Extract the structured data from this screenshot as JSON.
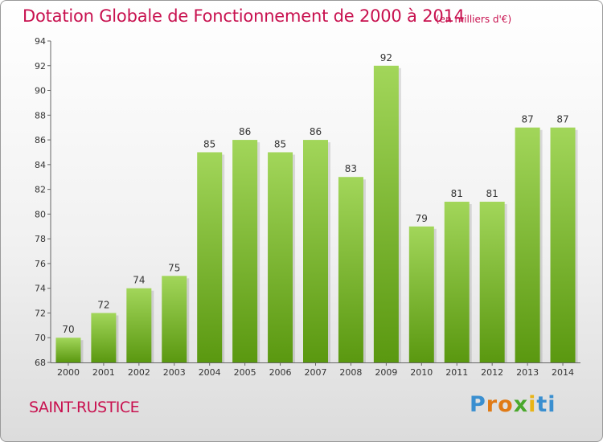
{
  "title": "Dotation Globale de Fonctionnement de 2000 à 2014",
  "unit_note": "(en milliers d'€)",
  "commune": "SAINT-RUSTICE",
  "logo": {
    "letters": [
      "P",
      "r",
      "o",
      "x",
      "i",
      "t",
      "i"
    ]
  },
  "colors": {
    "title": "#c8114f",
    "bar_light": "#9dd353",
    "bar_dark": "#5e9c12"
  },
  "chart_data": {
    "type": "bar",
    "title": "Dotation Globale de Fonctionnement de 2000 à 2014",
    "categories": [
      "2000",
      "2001",
      "2002",
      "2003",
      "2004",
      "2005",
      "2006",
      "2007",
      "2008",
      "2009",
      "2010",
      "2011",
      "2012",
      "2013",
      "2014"
    ],
    "values": [
      70,
      72,
      74,
      75,
      85,
      86,
      85,
      86,
      83,
      92,
      79,
      81,
      81,
      87,
      87
    ],
    "ylim": [
      68,
      94
    ],
    "yticks": [
      68,
      70,
      72,
      74,
      76,
      78,
      80,
      82,
      84,
      86,
      88,
      90,
      92,
      94
    ],
    "grid": false,
    "data_labels": true
  }
}
